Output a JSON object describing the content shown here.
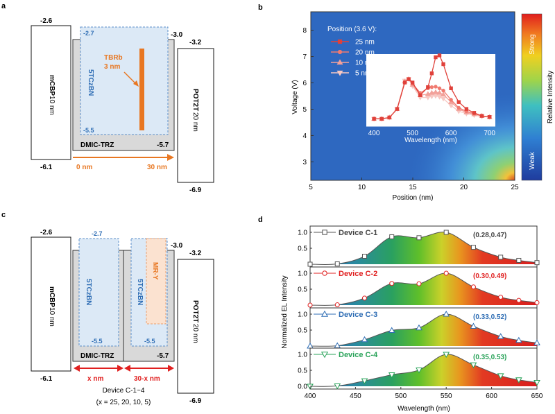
{
  "panel_labels": {
    "a": "a",
    "b": "b",
    "c": "c",
    "d": "d"
  },
  "panel_a": {
    "mcbp_label": "mCBP",
    "mcbp_thick": "10 nm",
    "mcbp_top": "-2.6",
    "mcbp_bottom": "-6.1",
    "host_label": "DMIC-TRZ",
    "host_top": "-3.0",
    "host_bottom": "-5.7",
    "sens_label": "5TCzBN",
    "sens_top": "-2.7",
    "sens_bottom": "-5.5",
    "tbrb_label": "TBRb",
    "tbrb_thick": "3 nm",
    "pot_label": "POT2T",
    "pot_thick": "20 nm",
    "pot_top": "-3.2",
    "pot_bottom": "-6.9",
    "arrow_start": "0 nm",
    "arrow_end": "30 nm"
  },
  "panel_c": {
    "mcbp_label": "mCBP",
    "mcbp_thick": "10 nm",
    "mcbp_top": "-2.6",
    "mcbp_bottom": "-6.1",
    "host_label": "DMIC-TRZ",
    "host_top": "-3.0",
    "host_bottom": "-5.7",
    "sens_label": "5TCzBN",
    "sens_top": "-2.7",
    "sens_bottom": "-5.5",
    "sens2_bottom": "-5.5",
    "mry_label": "MR-Y",
    "pot_label": "POT2T",
    "pot_thick": "20 nm",
    "pot_top": "-3.2",
    "pot_bottom": "-6.9",
    "x_label": "x nm",
    "rest_label": "30-x nm",
    "caption1": "Device C-1~4",
    "caption2": "(x = 25, 20, 10, 5)"
  },
  "colors": {
    "orange": "#e87722",
    "blue": "#2e6db4",
    "red": "#e02020",
    "sens_fill": "#dce9f6",
    "mry_fill": "#fbe2d0",
    "host_fill": "#d9d9d9"
  },
  "chart_data": [
    {
      "type": "heatmap",
      "xlabel": "Position (nm)",
      "ylabel": "Voltage (V)",
      "xlim": [
        5,
        25
      ],
      "ylim": [
        2.3,
        8.7
      ],
      "xticks": [
        5,
        10,
        15,
        20,
        25
      ],
      "yticks": [
        3,
        4,
        5,
        6,
        7,
        8
      ],
      "colorbar": {
        "label": "Relative Intensity",
        "high": "Strong",
        "low": "Weak"
      },
      "inset": {
        "type": "line",
        "title": "Position (3.6 V):",
        "xlabel": "Wavelength (nm)",
        "xlim": [
          380,
          715
        ],
        "ylim": [
          4.4,
          7.9
        ],
        "xticks": [
          400,
          500,
          600,
          700
        ],
        "series": [
          {
            "name": "25 nm",
            "marker": "square",
            "color": "#e0413a",
            "x": [
              400,
              420,
              440,
              460,
              480,
              490,
              500,
              520,
              540,
              550,
              560,
              570,
              580,
              600,
              620,
              640,
              660,
              680,
              700
            ],
            "y": [
              4.72,
              4.72,
              4.78,
              5.15,
              6.3,
              6.45,
              6.3,
              5.75,
              6.1,
              6.7,
              7.4,
              7.48,
              7.1,
              6.05,
              5.45,
              5.15,
              4.98,
              4.85,
              4.8
            ]
          },
          {
            "name": "20 nm",
            "marker": "circle",
            "color": "#f07a70",
            "x": [
              400,
              420,
              440,
              460,
              480,
              490,
              500,
              520,
              540,
              550,
              560,
              570,
              580,
              600,
              620,
              640,
              660,
              680,
              700
            ],
            "y": [
              4.72,
              4.72,
              4.78,
              5.15,
              6.32,
              6.45,
              6.25,
              5.85,
              6.05,
              6.1,
              6.12,
              6.05,
              5.95,
              5.55,
              5.2,
              5.05,
              4.95,
              4.85,
              4.8
            ]
          },
          {
            "name": "10 nm",
            "marker": "triangle",
            "color": "#f2a19a",
            "x": [
              400,
              420,
              440,
              460,
              480,
              490,
              500,
              520,
              540,
              550,
              560,
              570,
              580,
              600,
              620,
              640,
              660,
              680,
              700
            ],
            "y": [
              4.72,
              4.72,
              4.78,
              5.15,
              6.35,
              6.45,
              6.2,
              5.75,
              5.8,
              5.85,
              5.88,
              5.85,
              5.78,
              5.45,
              5.15,
              5.0,
              4.92,
              4.85,
              4.8
            ]
          },
          {
            "name": "5 nm",
            "marker": "triangle-down",
            "color": "#f7c8c3",
            "x": [
              400,
              420,
              440,
              460,
              480,
              490,
              500,
              520,
              540,
              550,
              560,
              570,
              580,
              600,
              620,
              640,
              660,
              680,
              700
            ],
            "y": [
              4.72,
              4.72,
              4.78,
              5.15,
              6.38,
              6.45,
              6.15,
              5.65,
              5.65,
              5.7,
              5.72,
              5.68,
              5.6,
              5.3,
              5.05,
              4.95,
              4.88,
              4.82,
              4.8
            ]
          }
        ]
      }
    },
    {
      "type": "area",
      "xlabel": "Wavelength (nm)",
      "ylabel": "Normalized EL Intensity",
      "xlim": [
        400,
        650
      ],
      "xticks": [
        400,
        450,
        500,
        550,
        600,
        650
      ],
      "yticks": [
        0.0,
        0.5,
        1.0
      ],
      "series": [
        {
          "name": "Device C-1",
          "cie": "(0.28,0.47)",
          "marker": "square",
          "label_color": "#444444",
          "x": [
            400,
            430,
            460,
            490,
            520,
            550,
            580,
            610,
            630,
            650
          ],
          "y": [
            0.0,
            0.01,
            0.25,
            0.86,
            0.83,
            1.0,
            0.53,
            0.22,
            0.12,
            0.05
          ]
        },
        {
          "name": "Device C-2",
          "cie": "(0.30,0.49)",
          "marker": "circle",
          "label_color": "#e02020",
          "x": [
            400,
            430,
            460,
            490,
            520,
            550,
            580,
            610,
            630,
            650
          ],
          "y": [
            0.0,
            0.01,
            0.22,
            0.68,
            0.67,
            1.0,
            0.57,
            0.25,
            0.15,
            0.08
          ]
        },
        {
          "name": "Device C-3",
          "cie": "(0.33,0.52)",
          "marker": "triangle",
          "label_color": "#2e6db4",
          "x": [
            400,
            430,
            460,
            490,
            520,
            550,
            580,
            610,
            630,
            650
          ],
          "y": [
            0.0,
            0.01,
            0.2,
            0.49,
            0.57,
            1.0,
            0.62,
            0.3,
            0.18,
            0.1
          ]
        },
        {
          "name": "Device C-4",
          "cie": "(0.35,0.53)",
          "marker": "triangle-down",
          "label_color": "#2aa35a",
          "x": [
            400,
            430,
            460,
            490,
            520,
            550,
            580,
            610,
            630,
            650
          ],
          "y": [
            0.0,
            0.01,
            0.17,
            0.36,
            0.51,
            1.0,
            0.67,
            0.33,
            0.2,
            0.12
          ]
        }
      ]
    }
  ]
}
